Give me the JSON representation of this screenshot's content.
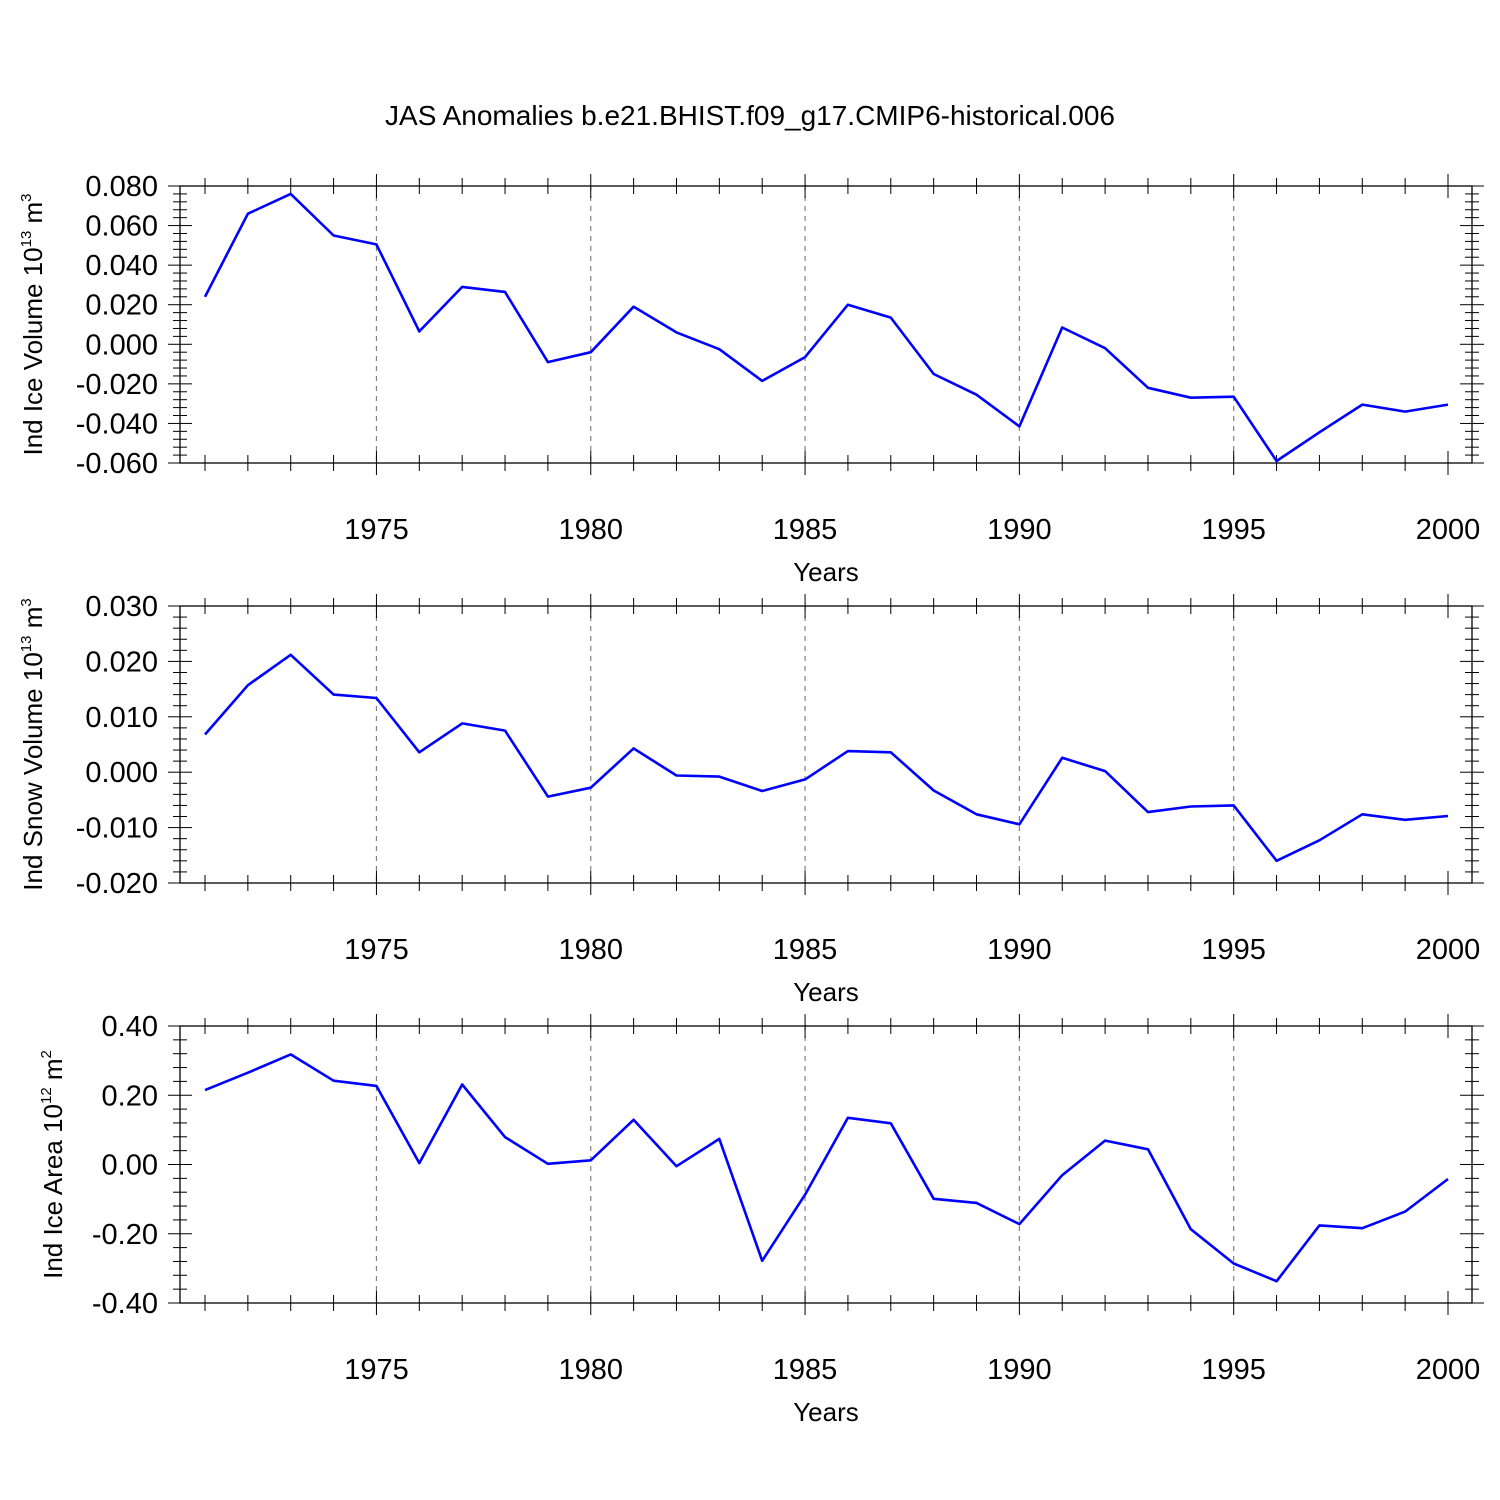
{
  "figure": {
    "title": "JAS Anomalies b.e21.BHIST.f09_g17.CMIP6-historical.006",
    "line_color": "#0000ff",
    "grid_color": "#808080"
  },
  "chart_data": [
    {
      "type": "line",
      "title": "",
      "xlabel": "Years",
      "ylabel": {
        "pre": "Ind Ice Volume 10",
        "exp1": "13",
        "mid": " m",
        "exp2": "3"
      },
      "xlim": [
        1971,
        2000
      ],
      "ylim": [
        -0.06,
        0.08
      ],
      "xticks": [
        1975,
        1980,
        1985,
        1990,
        1995,
        2000
      ],
      "yticks": [
        -0.06,
        -0.04,
        -0.02,
        0.0,
        0.02,
        0.04,
        0.06,
        0.08
      ],
      "ytick_labels": [
        "-0.060",
        "-0.040",
        "-0.020",
        "0.000",
        "0.020",
        "0.040",
        "0.060",
        "0.080"
      ],
      "grid": "vertical dashed at major x ticks",
      "x": [
        1971,
        1972,
        1973,
        1974,
        1975,
        1976,
        1977,
        1978,
        1979,
        1980,
        1981,
        1982,
        1983,
        1984,
        1985,
        1986,
        1987,
        1988,
        1989,
        1990,
        1991,
        1992,
        1993,
        1994,
        1995,
        1996,
        1997,
        1998,
        1999,
        2000
      ],
      "values": [
        0.024,
        0.066,
        0.076,
        0.055,
        0.0505,
        0.0065,
        0.029,
        0.0265,
        -0.009,
        -0.004,
        0.019,
        0.006,
        -0.0025,
        -0.0185,
        -0.0065,
        0.02,
        0.0135,
        -0.015,
        -0.0255,
        -0.0415,
        0.0085,
        -0.002,
        -0.022,
        -0.027,
        -0.0265,
        -0.059,
        -0.0445,
        -0.0305,
        -0.034,
        -0.0305
      ]
    },
    {
      "type": "line",
      "title": "",
      "xlabel": "Years",
      "ylabel": {
        "pre": "Ind Snow Volume 10",
        "exp1": "13",
        "mid": " m",
        "exp2": "3"
      },
      "xlim": [
        1971,
        2000
      ],
      "ylim": [
        -0.02,
        0.03
      ],
      "xticks": [
        1975,
        1980,
        1985,
        1990,
        1995,
        2000
      ],
      "yticks": [
        -0.02,
        -0.01,
        0.0,
        0.01,
        0.02,
        0.03
      ],
      "ytick_labels": [
        "-0.020",
        "-0.010",
        "0.000",
        "0.010",
        "0.020",
        "0.030"
      ],
      "grid": "vertical dashed at major x ticks",
      "x": [
        1971,
        1972,
        1973,
        1974,
        1975,
        1976,
        1977,
        1978,
        1979,
        1980,
        1981,
        1982,
        1983,
        1984,
        1985,
        1986,
        1987,
        1988,
        1989,
        1990,
        1991,
        1992,
        1993,
        1994,
        1995,
        1996,
        1997,
        1998,
        1999,
        2000
      ],
      "values": [
        0.0068,
        0.0157,
        0.0212,
        0.014,
        0.0134,
        0.0036,
        0.0088,
        0.0075,
        -0.0044,
        -0.0028,
        0.0043,
        -0.0006,
        -0.0008,
        -0.0034,
        -0.0013,
        0.0038,
        0.0036,
        -0.0033,
        -0.0076,
        -0.0094,
        0.0026,
        0.0002,
        -0.0072,
        -0.0062,
        -0.006,
        -0.016,
        -0.0123,
        -0.0076,
        -0.0086,
        -0.0079
      ]
    },
    {
      "type": "line",
      "title": "",
      "xlabel": "Years",
      "ylabel": {
        "pre": "Ind Ice Area 10",
        "exp1": "12",
        "mid": " m",
        "exp2": "2"
      },
      "xlim": [
        1971,
        2000
      ],
      "ylim": [
        -0.4,
        0.4
      ],
      "xticks": [
        1975,
        1980,
        1985,
        1990,
        1995,
        2000
      ],
      "yticks": [
        -0.4,
        -0.2,
        0.0,
        0.2,
        0.4
      ],
      "ytick_labels": [
        "-0.40",
        "-0.20",
        "0.00",
        "0.20",
        "0.40"
      ],
      "grid": "vertical dashed at major x ticks",
      "x": [
        1971,
        1972,
        1973,
        1974,
        1975,
        1976,
        1977,
        1978,
        1979,
        1980,
        1981,
        1982,
        1983,
        1984,
        1985,
        1986,
        1987,
        1988,
        1989,
        1990,
        1991,
        1992,
        1993,
        1994,
        1995,
        1996,
        1997,
        1998,
        1999,
        2000
      ],
      "values": [
        0.215,
        0.265,
        0.318,
        0.242,
        0.227,
        0.004,
        0.231,
        0.079,
        0.002,
        0.012,
        0.129,
        -0.005,
        0.074,
        -0.278,
        -0.087,
        0.135,
        0.119,
        -0.099,
        -0.111,
        -0.172,
        -0.031,
        0.069,
        0.044,
        -0.187,
        -0.286,
        -0.337,
        -0.176,
        -0.184,
        -0.136,
        -0.042
      ]
    }
  ]
}
